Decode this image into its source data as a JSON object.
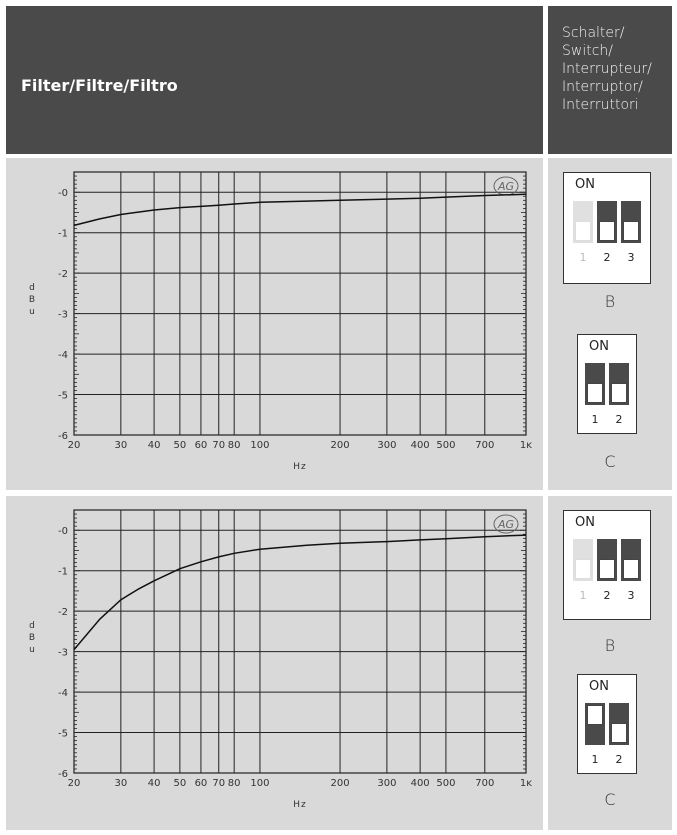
{
  "header": {
    "title": "Filter/Filtre/Filtro",
    "switch_label": "Schalter/\nSwitch/\nInterrupteur/\nInterruptor/\nInterruttori"
  },
  "colors": {
    "header_bg": "#4a4a4a",
    "panel_bg": "#d9d9d9",
    "lever_dark": "#4a4a4a",
    "lever_light": "#e0e0e0"
  },
  "logo_icon": "ahg-logo-icon",
  "rows": [
    {
      "chart_data": {
        "type": "line",
        "xscale": "log",
        "xlim": [
          20,
          1000
        ],
        "ylim": [
          -6,
          0.5
        ],
        "xlabel": "Hz",
        "ylabel": "d\nB\nu",
        "x_ticks": [
          20,
          30,
          40,
          50,
          60,
          70,
          80,
          100,
          200,
          300,
          400,
          500,
          700,
          1000
        ],
        "x_tick_labels": [
          "20",
          "30",
          "40",
          "50",
          "60",
          "70",
          "80",
          "100",
          "200",
          "300",
          "400",
          "500",
          "700",
          "1ĸ"
        ],
        "y_ticks": [
          0,
          -1,
          -2,
          -3,
          -4,
          -5,
          -6
        ],
        "y_tick_labels": [
          "-0",
          "-1",
          "-2",
          "-3",
          "-4",
          "-5",
          "-6"
        ],
        "grid": true,
        "series": [
          {
            "x": [
              20,
              25,
              30,
              40,
              50,
              60,
              70,
              80,
              100,
              150,
              200,
              300,
              400,
              500,
              700,
              1000
            ],
            "y": [
              -0.82,
              -0.66,
              -0.55,
              -0.44,
              -0.38,
              -0.35,
              -0.32,
              -0.29,
              -0.25,
              -0.22,
              -0.2,
              -0.17,
              -0.15,
              -0.12,
              -0.08,
              -0.05
            ]
          }
        ]
      },
      "switches": [
        {
          "on_label": "ON",
          "levers": [
            {
              "label": "1",
              "state": "off"
            },
            {
              "label": "2",
              "state": "off"
            },
            {
              "label": "3",
              "state": "off"
            }
          ],
          "caption": "B"
        },
        {
          "on_label": "ON",
          "levers": [
            {
              "label": "1",
              "state": "off"
            },
            {
              "label": "2",
              "state": "off"
            }
          ],
          "caption": "C"
        }
      ]
    },
    {
      "chart_data": {
        "type": "line",
        "xscale": "log",
        "xlim": [
          20,
          1000
        ],
        "ylim": [
          -6,
          0.5
        ],
        "xlabel": "Hz",
        "ylabel": "d\nB\nu",
        "x_ticks": [
          20,
          30,
          40,
          50,
          60,
          70,
          80,
          100,
          200,
          300,
          400,
          500,
          700,
          1000
        ],
        "x_tick_labels": [
          "20",
          "30",
          "40",
          "50",
          "60",
          "70",
          "80",
          "100",
          "200",
          "300",
          "400",
          "500",
          "700",
          "1ĸ"
        ],
        "y_ticks": [
          0,
          -1,
          -2,
          -3,
          -4,
          -5,
          -6
        ],
        "y_tick_labels": [
          "-0",
          "-1",
          "-2",
          "-3",
          "-4",
          "-5",
          "-6"
        ],
        "grid": true,
        "series": [
          {
            "x": [
              20,
              25,
              30,
              35,
              40,
              50,
              60,
              70,
              80,
              100,
              150,
              200,
              300,
              400,
              500,
              700,
              1000
            ],
            "y": [
              -2.95,
              -2.2,
              -1.72,
              -1.45,
              -1.25,
              -0.95,
              -0.78,
              -0.66,
              -0.57,
              -0.47,
              -0.37,
              -0.32,
              -0.28,
              -0.24,
              -0.21,
              -0.16,
              -0.12
            ]
          }
        ]
      },
      "switches": [
        {
          "on_label": "ON",
          "levers": [
            {
              "label": "1",
              "state": "off"
            },
            {
              "label": "2",
              "state": "off"
            },
            {
              "label": "3",
              "state": "off"
            }
          ],
          "caption": "B"
        },
        {
          "on_label": "ON",
          "levers": [
            {
              "label": "1",
              "state": "on"
            },
            {
              "label": "2",
              "state": "off"
            }
          ],
          "caption": "C"
        }
      ]
    }
  ]
}
